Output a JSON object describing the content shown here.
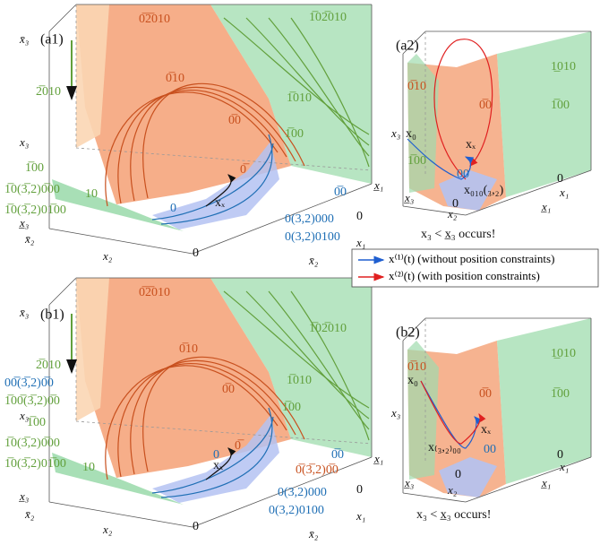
{
  "panels": [
    {
      "tag": "(a1)",
      "regions": [
        "0̅2̅010",
        "1̅02̅010",
        "2̅010",
        "0̅10",
        "1̅010",
        "0̅0",
        "1̅00",
        "0̅",
        "10"
      ],
      "trajectory_labels": [
        "xₓ",
        "0",
        "0̅0",
        "0(3,2)000",
        "0(3,2)0100",
        "1̅00",
        "1̅0(3̅,2)0̅00",
        "1̅0(3̅,2)01̅00"
      ],
      "axes": [
        "x̄₃",
        "x₃",
        "x̲₃",
        "x̄₂",
        "x₂",
        "0",
        "x̲₁",
        "0",
        "x₁",
        "x̄₂"
      ]
    },
    {
      "tag": "(a2)",
      "regions": [
        "1̲010",
        "0̅10",
        "0̅0",
        "1̅00",
        "1̅00",
        "00"
      ],
      "trajectory_labels": [
        "x₀",
        "xₓ",
        "x₀₁₀(₃,₂)",
        "x₃ < x̲₃ occurs!"
      ],
      "axes": [
        "x₃",
        "x̲₃",
        "x₂",
        "0",
        "0",
        "x₁",
        "x̲₁"
      ]
    },
    {
      "tag": "(b1)",
      "regions": [
        "0̅2̅010",
        "1̅02̅010",
        "2̅010",
        "0̅10",
        "1̅010",
        "0̅0",
        "1̅00",
        "0̅",
        "10"
      ],
      "trajectory_labels": [
        "xₓ",
        "0",
        "0̅0",
        "0̅(3̅,2)0̅0",
        "0(3,2)000",
        "0(3,2)0100",
        "00̅(3̅,2)0̅0",
        "1̅00̅(3̅,2)0̅0",
        "1̅00",
        "1̅0(3̅,2)0̅00",
        "1̅0(3̅,2)01̅00"
      ],
      "axes": [
        "x̄₃",
        "x₃",
        "x̲₃",
        "x̄₂",
        "x₂",
        "0",
        "x̲₁",
        "0",
        "x₁",
        "x̄₂"
      ]
    },
    {
      "tag": "(b2)",
      "regions": [
        "1̲010",
        "0̅10",
        "0̅0",
        "1̅00",
        "00"
      ],
      "trajectory_labels": [
        "x₀",
        "xₓ",
        "x₍₃,₂₎₀₀",
        "x₃ < x̲₃ occurs!"
      ],
      "axes": [
        "x₃",
        "x̲₃",
        "x₂",
        "0",
        "0",
        "x₁",
        "x̲₁"
      ]
    }
  ],
  "legend": [
    "x⁽¹⁾(t) (without position constraints)",
    "x⁽²⁾(t) (with position constraints)"
  ]
}
